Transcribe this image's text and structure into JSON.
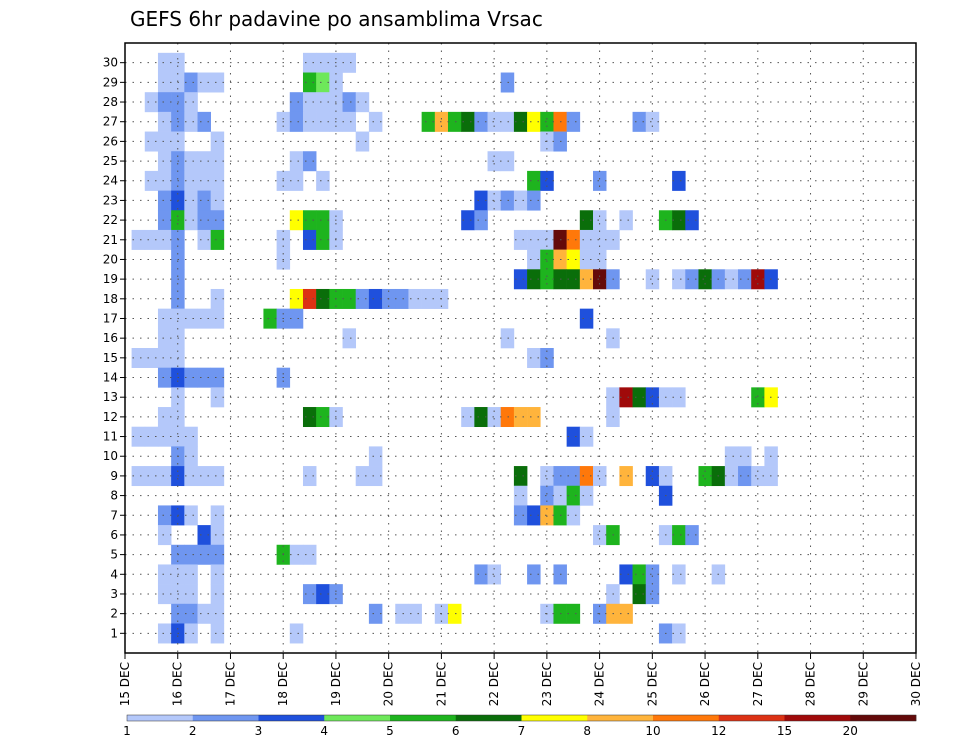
{
  "chart_data": {
    "type": "heatmap",
    "title": "GEFS 6hr padavine po ansamblima Vrsac",
    "x_tick_labels": [
      "15 DEC",
      "16 DEC",
      "17 DEC",
      "18 DEC",
      "19 DEC",
      "20 DEC",
      "21 DEC",
      "22 DEC",
      "23 DEC",
      "24 DEC",
      "25 DEC",
      "26 DEC",
      "27 DEC",
      "28 DEC",
      "29 DEC",
      "30 DEC"
    ],
    "y_tick_labels": [
      "1",
      "2",
      "3",
      "4",
      "5",
      "6",
      "7",
      "8",
      "9",
      "10",
      "11",
      "12",
      "13",
      "14",
      "15",
      "16",
      "17",
      "18",
      "19",
      "20",
      "21",
      "22",
      "23",
      "24",
      "25",
      "26",
      "27",
      "28",
      "29",
      "30"
    ],
    "time_step_hours": 6,
    "grid": "dotted",
    "colorbar": {
      "position": "bottom",
      "levels": [
        "1",
        "2",
        "3",
        "4",
        "5",
        "6",
        "7",
        "8",
        "10",
        "12",
        "15",
        "20"
      ],
      "colors": [
        "#b4c8fa",
        "#6f96f0",
        "#1f50dc",
        "#6ee85a",
        "#1eb41e",
        "#0a6e0a",
        "#ffff00",
        "#ffb43c",
        "#ff780a",
        "#dc3214",
        "#a00a0a",
        "#640a0a"
      ]
    },
    "cells": [
      [
        30,
        3,
        1
      ],
      [
        30,
        4,
        1
      ],
      [
        30,
        14,
        1
      ],
      [
        30,
        15,
        1
      ],
      [
        30,
        16,
        1
      ],
      [
        30,
        17,
        1
      ],
      [
        29,
        3,
        1
      ],
      [
        29,
        4,
        1
      ],
      [
        29,
        5,
        2
      ],
      [
        29,
        6,
        1
      ],
      [
        29,
        7,
        1
      ],
      [
        29,
        14,
        5
      ],
      [
        29,
        15,
        4
      ],
      [
        29,
        16,
        1
      ],
      [
        29,
        29,
        2
      ],
      [
        28,
        2,
        1
      ],
      [
        28,
        3,
        2
      ],
      [
        28,
        4,
        2
      ],
      [
        28,
        5,
        1
      ],
      [
        28,
        13,
        2
      ],
      [
        28,
        14,
        1
      ],
      [
        28,
        15,
        1
      ],
      [
        28,
        16,
        1
      ],
      [
        28,
        17,
        2
      ],
      [
        28,
        18,
        1
      ],
      [
        27,
        3,
        1
      ],
      [
        27,
        4,
        2
      ],
      [
        27,
        5,
        1
      ],
      [
        27,
        6,
        2
      ],
      [
        27,
        12,
        1
      ],
      [
        27,
        13,
        2
      ],
      [
        27,
        14,
        1
      ],
      [
        27,
        15,
        1
      ],
      [
        27,
        16,
        1
      ],
      [
        27,
        17,
        1
      ],
      [
        27,
        19,
        1
      ],
      [
        27,
        23,
        5
      ],
      [
        27,
        24,
        8
      ],
      [
        27,
        25,
        5
      ],
      [
        27,
        26,
        6
      ],
      [
        27,
        27,
        2
      ],
      [
        27,
        28,
        1
      ],
      [
        27,
        29,
        1
      ],
      [
        27,
        30,
        6
      ],
      [
        27,
        31,
        7
      ],
      [
        27,
        32,
        5
      ],
      [
        27,
        33,
        9
      ],
      [
        27,
        34,
        2
      ],
      [
        27,
        39,
        2
      ],
      [
        27,
        40,
        1
      ],
      [
        26,
        2,
        1
      ],
      [
        26,
        3,
        1
      ],
      [
        26,
        4,
        1
      ],
      [
        26,
        7,
        1
      ],
      [
        26,
        18,
        1
      ],
      [
        26,
        32,
        1
      ],
      [
        26,
        33,
        2
      ],
      [
        25,
        3,
        1
      ],
      [
        25,
        4,
        2
      ],
      [
        25,
        5,
        1
      ],
      [
        25,
        6,
        1
      ],
      [
        25,
        7,
        1
      ],
      [
        25,
        13,
        1
      ],
      [
        25,
        14,
        2
      ],
      [
        25,
        28,
        1
      ],
      [
        25,
        29,
        1
      ],
      [
        24,
        2,
        1
      ],
      [
        24,
        3,
        1
      ],
      [
        24,
        4,
        2
      ],
      [
        24,
        5,
        1
      ],
      [
        24,
        6,
        1
      ],
      [
        24,
        7,
        1
      ],
      [
        24,
        12,
        1
      ],
      [
        24,
        13,
        1
      ],
      [
        24,
        15,
        1
      ],
      [
        24,
        31,
        5
      ],
      [
        24,
        32,
        3
      ],
      [
        24,
        36,
        2
      ],
      [
        24,
        42,
        3
      ],
      [
        23,
        3,
        2
      ],
      [
        23,
        4,
        3
      ],
      [
        23,
        5,
        1
      ],
      [
        23,
        6,
        2
      ],
      [
        23,
        7,
        1
      ],
      [
        23,
        27,
        3
      ],
      [
        23,
        28,
        1
      ],
      [
        23,
        29,
        2
      ],
      [
        23,
        30,
        1
      ],
      [
        23,
        31,
        2
      ],
      [
        22,
        3,
        2
      ],
      [
        22,
        4,
        5
      ],
      [
        22,
        5,
        1
      ],
      [
        22,
        6,
        2
      ],
      [
        22,
        7,
        2
      ],
      [
        22,
        13,
        7
      ],
      [
        22,
        14,
        5
      ],
      [
        22,
        15,
        5
      ],
      [
        22,
        16,
        1
      ],
      [
        22,
        26,
        3
      ],
      [
        22,
        27,
        2
      ],
      [
        22,
        35,
        6
      ],
      [
        22,
        36,
        1
      ],
      [
        22,
        38,
        1
      ],
      [
        22,
        41,
        5
      ],
      [
        22,
        42,
        6
      ],
      [
        22,
        43,
        3
      ],
      [
        21,
        1,
        1
      ],
      [
        21,
        2,
        1
      ],
      [
        21,
        3,
        1
      ],
      [
        21,
        4,
        2
      ],
      [
        21,
        6,
        1
      ],
      [
        21,
        7,
        5
      ],
      [
        21,
        12,
        1
      ],
      [
        21,
        14,
        3
      ],
      [
        21,
        15,
        5
      ],
      [
        21,
        16,
        1
      ],
      [
        21,
        30,
        1
      ],
      [
        21,
        31,
        1
      ],
      [
        21,
        32,
        1
      ],
      [
        21,
        33,
        12
      ],
      [
        21,
        34,
        9
      ],
      [
        21,
        35,
        1
      ],
      [
        21,
        36,
        1
      ],
      [
        21,
        37,
        1
      ],
      [
        20,
        4,
        2
      ],
      [
        20,
        12,
        1
      ],
      [
        20,
        31,
        1
      ],
      [
        20,
        32,
        5
      ],
      [
        20,
        33,
        8
      ],
      [
        20,
        34,
        7
      ],
      [
        20,
        35,
        1
      ],
      [
        20,
        36,
        1
      ],
      [
        19,
        4,
        2
      ],
      [
        19,
        30,
        3
      ],
      [
        19,
        31,
        6
      ],
      [
        19,
        32,
        5
      ],
      [
        19,
        33,
        6
      ],
      [
        19,
        34,
        6
      ],
      [
        19,
        35,
        8
      ],
      [
        19,
        36,
        12
      ],
      [
        19,
        37,
        2
      ],
      [
        19,
        40,
        1
      ],
      [
        19,
        42,
        1
      ],
      [
        19,
        43,
        2
      ],
      [
        19,
        44,
        6
      ],
      [
        19,
        45,
        2
      ],
      [
        19,
        46,
        1
      ],
      [
        19,
        47,
        2
      ],
      [
        19,
        48,
        11
      ],
      [
        19,
        49,
        3
      ],
      [
        18,
        4,
        2
      ],
      [
        18,
        7,
        1
      ],
      [
        18,
        13,
        7
      ],
      [
        18,
        14,
        10
      ],
      [
        18,
        15,
        6
      ],
      [
        18,
        16,
        5
      ],
      [
        18,
        17,
        5
      ],
      [
        18,
        18,
        2
      ],
      [
        18,
        19,
        3
      ],
      [
        18,
        20,
        2
      ],
      [
        18,
        21,
        2
      ],
      [
        18,
        22,
        1
      ],
      [
        18,
        23,
        1
      ],
      [
        18,
        24,
        1
      ],
      [
        17,
        3,
        1
      ],
      [
        17,
        4,
        1
      ],
      [
        17,
        5,
        1
      ],
      [
        17,
        6,
        1
      ],
      [
        17,
        7,
        1
      ],
      [
        17,
        11,
        5
      ],
      [
        17,
        12,
        2
      ],
      [
        17,
        13,
        2
      ],
      [
        17,
        35,
        3
      ],
      [
        16,
        3,
        1
      ],
      [
        16,
        4,
        1
      ],
      [
        16,
        17,
        1
      ],
      [
        16,
        29,
        1
      ],
      [
        16,
        37,
        1
      ],
      [
        15,
        1,
        1
      ],
      [
        15,
        2,
        1
      ],
      [
        15,
        3,
        1
      ],
      [
        15,
        4,
        1
      ],
      [
        15,
        31,
        1
      ],
      [
        15,
        32,
        2
      ],
      [
        14,
        3,
        2
      ],
      [
        14,
        4,
        3
      ],
      [
        14,
        5,
        2
      ],
      [
        14,
        6,
        2
      ],
      [
        14,
        7,
        2
      ],
      [
        14,
        12,
        2
      ],
      [
        13,
        4,
        1
      ],
      [
        13,
        7,
        1
      ],
      [
        13,
        37,
        1
      ],
      [
        13,
        38,
        11
      ],
      [
        13,
        39,
        6
      ],
      [
        13,
        40,
        3
      ],
      [
        13,
        41,
        1
      ],
      [
        13,
        42,
        1
      ],
      [
        13,
        48,
        5
      ],
      [
        13,
        49,
        7
      ],
      [
        12,
        3,
        1
      ],
      [
        12,
        4,
        1
      ],
      [
        12,
        14,
        6
      ],
      [
        12,
        15,
        5
      ],
      [
        12,
        16,
        1
      ],
      [
        12,
        26,
        1
      ],
      [
        12,
        27,
        6
      ],
      [
        12,
        28,
        1
      ],
      [
        12,
        29,
        9
      ],
      [
        12,
        30,
        8
      ],
      [
        12,
        31,
        8
      ],
      [
        12,
        37,
        1
      ],
      [
        11,
        1,
        1
      ],
      [
        11,
        2,
        1
      ],
      [
        11,
        3,
        1
      ],
      [
        11,
        4,
        1
      ],
      [
        11,
        5,
        1
      ],
      [
        11,
        34,
        3
      ],
      [
        11,
        35,
        1
      ],
      [
        10,
        4,
        2
      ],
      [
        10,
        5,
        1
      ],
      [
        10,
        19,
        1
      ],
      [
        10,
        46,
        1
      ],
      [
        10,
        47,
        1
      ],
      [
        10,
        49,
        1
      ],
      [
        9,
        1,
        1
      ],
      [
        9,
        2,
        1
      ],
      [
        9,
        3,
        1
      ],
      [
        9,
        4,
        3
      ],
      [
        9,
        5,
        1
      ],
      [
        9,
        6,
        1
      ],
      [
        9,
        7,
        1
      ],
      [
        9,
        14,
        1
      ],
      [
        9,
        18,
        1
      ],
      [
        9,
        19,
        1
      ],
      [
        9,
        30,
        6
      ],
      [
        9,
        32,
        1
      ],
      [
        9,
        33,
        2
      ],
      [
        9,
        34,
        2
      ],
      [
        9,
        35,
        9
      ],
      [
        9,
        36,
        1
      ],
      [
        9,
        38,
        8
      ],
      [
        9,
        40,
        3
      ],
      [
        9,
        41,
        1
      ],
      [
        9,
        44,
        5
      ],
      [
        9,
        45,
        6
      ],
      [
        9,
        46,
        1
      ],
      [
        9,
        47,
        2
      ],
      [
        9,
        48,
        1
      ],
      [
        9,
        49,
        1
      ],
      [
        8,
        30,
        1
      ],
      [
        8,
        32,
        2
      ],
      [
        8,
        33,
        1
      ],
      [
        8,
        34,
        5
      ],
      [
        8,
        35,
        1
      ],
      [
        8,
        41,
        3
      ],
      [
        7,
        3,
        2
      ],
      [
        7,
        4,
        3
      ],
      [
        7,
        5,
        1
      ],
      [
        7,
        7,
        1
      ],
      [
        7,
        30,
        2
      ],
      [
        7,
        31,
        3
      ],
      [
        7,
        32,
        8
      ],
      [
        7,
        33,
        5
      ],
      [
        7,
        34,
        1
      ],
      [
        6,
        3,
        1
      ],
      [
        6,
        6,
        3
      ],
      [
        6,
        7,
        1
      ],
      [
        6,
        36,
        1
      ],
      [
        6,
        37,
        5
      ],
      [
        6,
        41,
        1
      ],
      [
        6,
        42,
        5
      ],
      [
        6,
        43,
        2
      ],
      [
        5,
        4,
        2
      ],
      [
        5,
        5,
        2
      ],
      [
        5,
        6,
        2
      ],
      [
        5,
        7,
        2
      ],
      [
        5,
        12,
        5
      ],
      [
        5,
        13,
        1
      ],
      [
        5,
        14,
        1
      ],
      [
        4,
        3,
        1
      ],
      [
        4,
        4,
        1
      ],
      [
        4,
        5,
        1
      ],
      [
        4,
        7,
        1
      ],
      [
        4,
        27,
        2
      ],
      [
        4,
        28,
        1
      ],
      [
        4,
        31,
        2
      ],
      [
        4,
        33,
        2
      ],
      [
        4,
        38,
        3
      ],
      [
        4,
        39,
        5
      ],
      [
        4,
        40,
        2
      ],
      [
        4,
        42,
        1
      ],
      [
        4,
        45,
        1
      ],
      [
        3,
        3,
        1
      ],
      [
        3,
        4,
        1
      ],
      [
        3,
        5,
        1
      ],
      [
        3,
        7,
        1
      ],
      [
        3,
        14,
        2
      ],
      [
        3,
        15,
        3
      ],
      [
        3,
        16,
        2
      ],
      [
        3,
        37,
        1
      ],
      [
        3,
        39,
        6
      ],
      [
        3,
        40,
        2
      ],
      [
        2,
        4,
        2
      ],
      [
        2,
        5,
        2
      ],
      [
        2,
        6,
        1
      ],
      [
        2,
        7,
        1
      ],
      [
        2,
        19,
        2
      ],
      [
        2,
        21,
        1
      ],
      [
        2,
        22,
        1
      ],
      [
        2,
        24,
        1
      ],
      [
        2,
        25,
        7
      ],
      [
        2,
        32,
        1
      ],
      [
        2,
        33,
        5
      ],
      [
        2,
        34,
        5
      ],
      [
        2,
        36,
        2
      ],
      [
        2,
        37,
        8
      ],
      [
        2,
        38,
        8
      ],
      [
        1,
        3,
        1
      ],
      [
        1,
        4,
        3
      ],
      [
        1,
        5,
        1
      ],
      [
        1,
        7,
        1
      ],
      [
        1,
        13,
        1
      ],
      [
        1,
        41,
        2
      ],
      [
        1,
        42,
        1
      ]
    ]
  }
}
